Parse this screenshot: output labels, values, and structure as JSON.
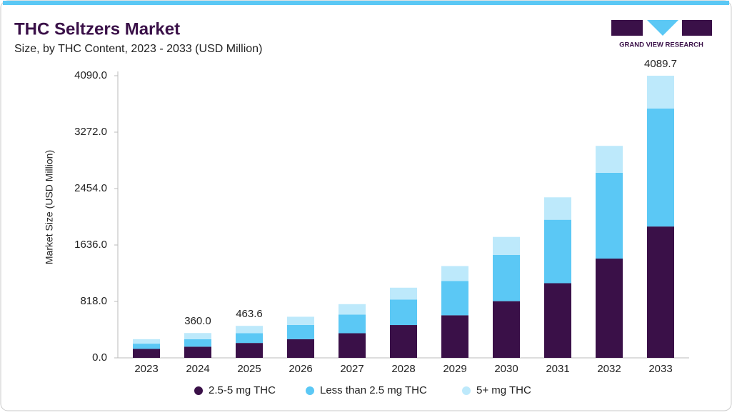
{
  "chart_data": {
    "type": "stacked-bar",
    "title": "THC Seltzers Market",
    "subtitle": "Size, by THC Content, 2023 - 2033 (USD Million)",
    "brand": "GRAND VIEW RESEARCH",
    "y_label": "Market Size (USD Million)",
    "categories": [
      "2023",
      "2024",
      "2025",
      "2026",
      "2027",
      "2028",
      "2029",
      "2030",
      "2031",
      "2032",
      "2033"
    ],
    "series": [
      {
        "name": "2.5-5 mg THC",
        "color": "#3a1048",
        "values": [
          130,
          162,
          216,
          271,
          357,
          476,
          617,
          822,
          1082,
          1439,
          1904
        ]
      },
      {
        "name": "Less than 2.5 mg THC",
        "color": "#5bc8f5",
        "values": [
          76,
          108,
          141,
          206,
          271,
          368,
          498,
          671,
          920,
          1244,
          1710
        ]
      },
      {
        "name": "5+ mg THC",
        "color": "#bde9fb",
        "values": [
          65,
          90,
          106.6,
          119,
          151,
          173,
          216,
          260,
          325,
          390,
          475.7
        ]
      }
    ],
    "total_values": [
      null,
      360,
      463.6,
      null,
      null,
      null,
      null,
      null,
      null,
      null,
      4089.7
    ],
    "total_labels": [
      null,
      "360.0",
      "463.6",
      null,
      null,
      null,
      null,
      null,
      null,
      null,
      "4089.7"
    ],
    "ylim": [
      0,
      4090
    ],
    "yticks": [
      {
        "value": 0,
        "label": "0.0"
      },
      {
        "value": 818,
        "label": "818.0"
      },
      {
        "value": 1636,
        "label": "1636.0"
      },
      {
        "value": 2454,
        "label": "2454.0"
      },
      {
        "value": 3272,
        "label": "3272.0"
      },
      {
        "value": 4090,
        "label": "4090.0"
      }
    ]
  }
}
